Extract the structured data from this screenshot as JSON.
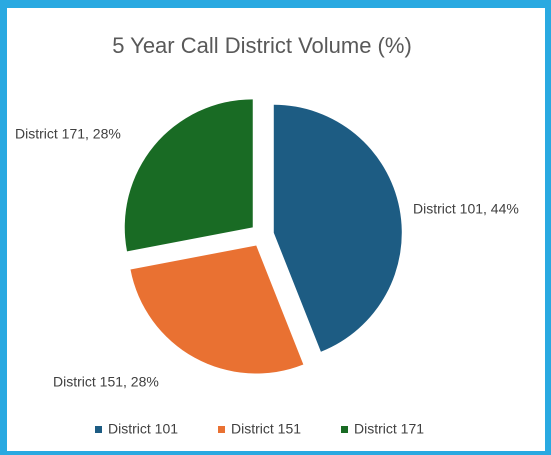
{
  "chart_data": {
    "type": "pie",
    "title": "5 Year Call District Volume (%)",
    "categories": [
      "District 101",
      "District 151",
      "District 171"
    ],
    "values": [
      44,
      28,
      28
    ],
    "value_labels": [
      "District 101, 44%",
      "District 151, 28%",
      "District 171, 28%"
    ],
    "colors": [
      "#1d5c83",
      "#e97132",
      "#196b24"
    ],
    "legend": "bottom"
  }
}
